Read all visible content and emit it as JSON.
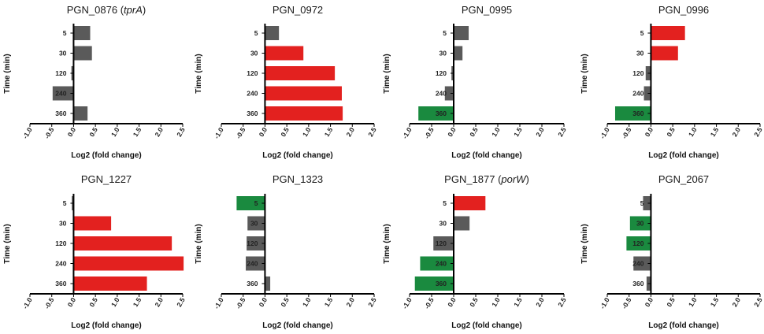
{
  "colors": {
    "neutral": "#5a5a5a",
    "up": "#e3211f",
    "down": "#1a8a3f"
  },
  "chart_data": [
    {
      "type": "bar",
      "orientation": "horizontal",
      "title_main": "PGN_0876 (",
      "title_italic": "tprA",
      "title_end": ")",
      "categories": [
        "5",
        "30",
        "120",
        "240",
        "360"
      ],
      "values": [
        0.38,
        0.42,
        -0.05,
        -0.48,
        0.32
      ],
      "colors": [
        "neutral",
        "neutral",
        "neutral",
        "neutral",
        "neutral"
      ],
      "xlim": [
        -1.0,
        2.5
      ],
      "xticks": [
        "-1.0",
        "-0.5",
        "0.0",
        "0.5",
        "1.0",
        "1.5",
        "2.0",
        "2.5"
      ],
      "xlabel": "Log2 (fold change)",
      "ylabel": "Time (min)"
    },
    {
      "type": "bar",
      "orientation": "horizontal",
      "title_main": "PGN_0972",
      "title_italic": "",
      "title_end": "",
      "categories": [
        "5",
        "30",
        "120",
        "240",
        "360"
      ],
      "values": [
        0.32,
        0.88,
        1.6,
        1.76,
        1.78
      ],
      "colors": [
        "neutral",
        "up",
        "up",
        "up",
        "up"
      ],
      "xlim": [
        -1.0,
        2.5
      ],
      "xticks": [
        "-1.0",
        "-0.5",
        "0.0",
        "0.5",
        "1.0",
        "1.5",
        "2.0",
        "2.5"
      ],
      "xlabel": "Log2 (fold change)",
      "ylabel": "Time (min)"
    },
    {
      "type": "bar",
      "orientation": "horizontal",
      "title_main": "PGN_0995",
      "title_italic": "",
      "title_end": "",
      "categories": [
        "5",
        "30",
        "120",
        "240",
        "360"
      ],
      "values": [
        0.34,
        0.2,
        -0.05,
        -0.2,
        -0.8
      ],
      "colors": [
        "neutral",
        "neutral",
        "neutral",
        "neutral",
        "down"
      ],
      "xlim": [
        -1.0,
        2.5
      ],
      "xticks": [
        "-1.0",
        "-0.5",
        "0.0",
        "0.5",
        "1.0",
        "1.5",
        "2.0",
        "2.5"
      ],
      "xlabel": "Log2 (fold change)",
      "ylabel": "Time (min)"
    },
    {
      "type": "bar",
      "orientation": "horizontal",
      "title_main": "PGN_0996",
      "title_italic": "",
      "title_end": "",
      "categories": [
        "5",
        "30",
        "120",
        "240",
        "360"
      ],
      "values": [
        0.78,
        0.62,
        -0.12,
        -0.16,
        -0.82
      ],
      "colors": [
        "up",
        "up",
        "neutral",
        "neutral",
        "down"
      ],
      "xlim": [
        -1.0,
        2.5
      ],
      "xticks": [
        "-1.0",
        "-0.5",
        "0.0",
        "0.5",
        "1.0",
        "1.5",
        "2.0",
        "2.5"
      ],
      "xlabel": "Log2 (fold change)",
      "ylabel": "Time (min)"
    },
    {
      "type": "bar",
      "orientation": "horizontal",
      "title_main": "PGN_1227",
      "title_italic": "",
      "title_end": "",
      "categories": [
        "5",
        "30",
        "120",
        "240",
        "360"
      ],
      "values": [
        -0.04,
        0.86,
        2.25,
        2.52,
        1.68
      ],
      "colors": [
        "neutral",
        "up",
        "up",
        "up",
        "up"
      ],
      "xlim": [
        -1.0,
        2.5
      ],
      "xticks": [
        "-1.0",
        "-0.5",
        "0.0",
        "0.5",
        "1.0",
        "1.5",
        "2.0",
        "2.5"
      ],
      "xlabel": "Log2 (fold change)",
      "ylabel": "Time (min)"
    },
    {
      "type": "bar",
      "orientation": "horizontal",
      "title_main": "PGN_1323",
      "title_italic": "",
      "title_end": "",
      "categories": [
        "5",
        "30",
        "120",
        "240",
        "360"
      ],
      "values": [
        -0.65,
        -0.4,
        -0.42,
        -0.44,
        0.12
      ],
      "colors": [
        "down",
        "neutral",
        "neutral",
        "neutral",
        "neutral"
      ],
      "xlim": [
        -1.0,
        2.5
      ],
      "xticks": [
        "-1.0",
        "-0.5",
        "0.0",
        "0.5",
        "1.0",
        "1.5",
        "2.0",
        "2.5"
      ],
      "xlabel": "Log2 (fold change)",
      "ylabel": "Time (min)"
    },
    {
      "type": "bar",
      "orientation": "horizontal",
      "title_main": "PGN_1877 (",
      "title_italic": "porW",
      "title_end": ")",
      "categories": [
        "5",
        "30",
        "120",
        "240",
        "360"
      ],
      "values": [
        0.72,
        0.36,
        -0.46,
        -0.76,
        -0.88
      ],
      "colors": [
        "up",
        "neutral",
        "neutral",
        "down",
        "down"
      ],
      "xlim": [
        -1.0,
        2.5
      ],
      "xticks": [
        "-1.0",
        "-0.5",
        "0.0",
        "0.5",
        "1.0",
        "1.5",
        "2.0",
        "2.5"
      ],
      "xlabel": "Log2 (fold change)",
      "ylabel": "Time (min)"
    },
    {
      "type": "bar",
      "orientation": "horizontal",
      "title_main": "PGN_2067",
      "title_italic": "",
      "title_end": "",
      "categories": [
        "5",
        "30",
        "120",
        "240",
        "360"
      ],
      "values": [
        -0.18,
        -0.48,
        -0.56,
        -0.4,
        -0.1
      ],
      "colors": [
        "neutral",
        "down",
        "down",
        "neutral",
        "neutral"
      ],
      "xlim": [
        -1.0,
        2.5
      ],
      "xticks": [
        "-1.0",
        "-0.5",
        "0.0",
        "0.5",
        "1.0",
        "1.5",
        "2.0",
        "2.5"
      ],
      "xlabel": "Log2 (fold change)",
      "ylabel": "Time (min)"
    }
  ]
}
